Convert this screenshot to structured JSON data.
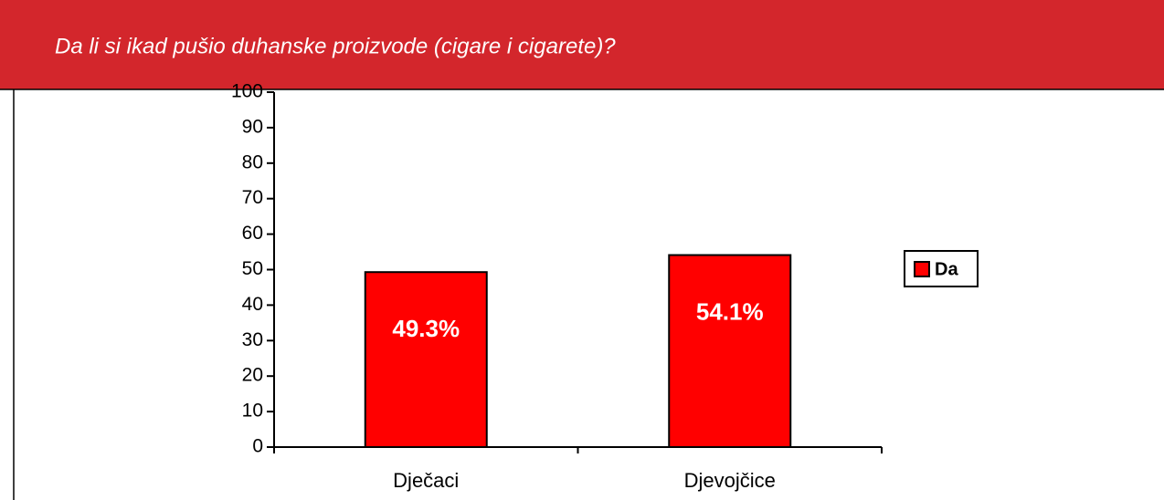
{
  "chart_data": {
    "type": "bar",
    "title": "Da li si ikad pušio duhanske proizvode (cigare i cigarete)?",
    "categories": [
      "Dječaci",
      "Djevojčice"
    ],
    "series": [
      {
        "name": "Da",
        "color": "#ff0000",
        "values": [
          49.3,
          54.1
        ],
        "value_labels": [
          "49.3%",
          "54.1%"
        ]
      }
    ],
    "ylim": [
      0,
      100
    ],
    "yticks": [
      0,
      10,
      20,
      30,
      40,
      50,
      60,
      70,
      80,
      90,
      100
    ],
    "legend": "right",
    "header_color": "#d3262c"
  }
}
